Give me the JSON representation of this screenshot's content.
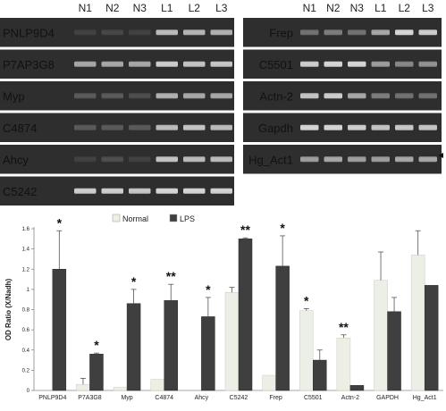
{
  "gel": {
    "lanes": [
      "N1",
      "N2",
      "N3",
      "L1",
      "L2",
      "L3"
    ],
    "left_panel": [
      {
        "gene": "PNLP9D4",
        "intensity": [
          0.1,
          0.12,
          0.1,
          0.65,
          0.62,
          0.6
        ]
      },
      {
        "gene": "P7AP3G8",
        "intensity": [
          0.55,
          0.55,
          0.55,
          0.75,
          0.7,
          0.72
        ]
      },
      {
        "gene": "Myp",
        "intensity": [
          0.2,
          0.2,
          0.15,
          0.6,
          0.55,
          0.55
        ]
      },
      {
        "gene": "C4874",
        "intensity": [
          0.2,
          0.2,
          0.2,
          0.65,
          0.7,
          0.65
        ]
      },
      {
        "gene": "Ahcy",
        "intensity": [
          0.1,
          0.15,
          0.1,
          0.7,
          0.65,
          0.65
        ]
      },
      {
        "gene": "C5242",
        "intensity": [
          0.75,
          0.75,
          0.72,
          0.8,
          0.8,
          0.78
        ]
      }
    ],
    "right_panel": [
      {
        "gene": "Frep",
        "intensity": [
          0.3,
          0.35,
          0.3,
          0.55,
          0.8,
          0.75
        ]
      },
      {
        "gene": "C5501",
        "intensity": [
          0.75,
          0.8,
          0.8,
          0.5,
          0.4,
          0.45
        ]
      },
      {
        "gene": "Actn-2",
        "intensity": [
          0.7,
          0.75,
          0.55,
          0.35,
          0.3,
          0.3
        ]
      },
      {
        "gene": "Gapdh",
        "intensity": [
          0.8,
          0.8,
          0.75,
          0.7,
          0.72,
          0.7
        ]
      },
      {
        "gene": "Hg_Act1",
        "intensity": [
          0.5,
          0.55,
          0.5,
          0.5,
          0.55,
          0.55
        ]
      }
    ]
  },
  "chart_data": {
    "type": "bar",
    "ylabel": "OD Ratio (X/Nadh)",
    "ylim": [
      0,
      1.6
    ],
    "yticks": [
      "0",
      "0.2",
      "0.4",
      "0.6",
      "0.8",
      "1",
      "1.2",
      "1.4",
      "1.6"
    ],
    "categories": [
      "PNLP9D4",
      "P7A3G8",
      "Myp",
      "C4874",
      "Ahcy",
      "C5242",
      "Frep",
      "C5501",
      "Actn-2",
      "GAPDH",
      "Hg_Act1"
    ],
    "series": [
      {
        "name": "Normal",
        "color": "#ecefe6",
        "values": [
          0,
          0.06,
          0.03,
          0.11,
          0,
          0.97,
          0.15,
          0.79,
          0.52,
          1.09,
          1.34
        ],
        "errors": [
          0,
          0.06,
          0,
          0,
          0,
          0.05,
          0,
          0.02,
          0.03,
          0.28,
          0.24
        ]
      },
      {
        "name": "LPS",
        "color": "#3f3f3f",
        "values": [
          1.2,
          0.36,
          0.86,
          0.89,
          0.73,
          1.5,
          1.23,
          0.3,
          0.05,
          0.78,
          1.04
        ],
        "errors": [
          0.38,
          0.01,
          0.14,
          0.16,
          0.19,
          0.01,
          0.3,
          0.1,
          0,
          0.14,
          0
        ]
      }
    ],
    "significance": [
      "*",
      "*",
      "*",
      "**",
      "*",
      "**",
      "*",
      "*",
      "**",
      "",
      ""
    ],
    "significance_over": [
      "LPS",
      "LPS",
      "LPS",
      "LPS",
      "LPS",
      "LPS",
      "LPS",
      "Normal",
      "Normal",
      "",
      ""
    ],
    "legend": {
      "position": "top-center",
      "items": [
        "Normal",
        "LPS"
      ]
    }
  }
}
